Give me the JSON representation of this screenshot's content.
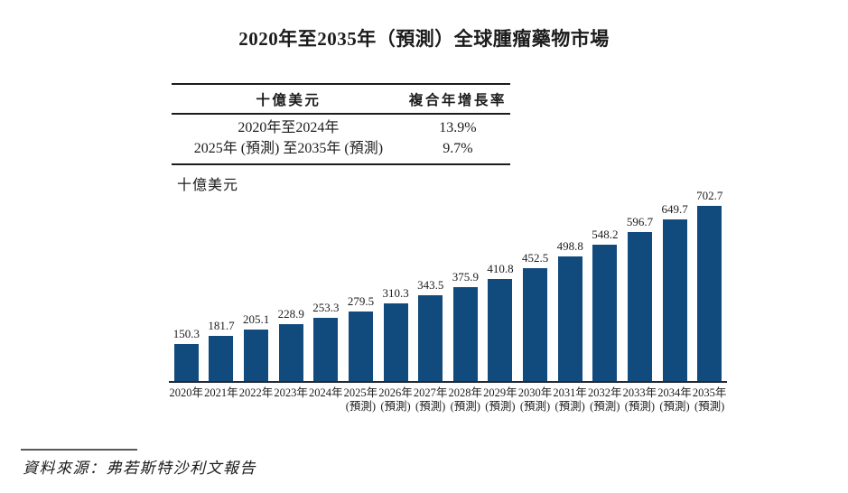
{
  "title": "2020年至2035年（預測）全球腫瘤藥物市場",
  "cagr_table": {
    "unit_header": "十億美元",
    "cagr_header": "複合年增長率",
    "rows": [
      {
        "period": "2020年至2024年",
        "cagr": "13.9%"
      },
      {
        "period": "2025年 (預測) 至2035年 (預測)",
        "cagr": "9.7%"
      }
    ]
  },
  "unit_label": "十億美元",
  "chart_data": {
    "type": "bar",
    "title": "2020年至2035年（預測）全球腫瘤藥物市場",
    "ylabel": "十億美元",
    "categories": [
      "2020年",
      "2021年",
      "2022年",
      "2023年",
      "2024年",
      "2025年",
      "2026年",
      "2027年",
      "2028年",
      "2029年",
      "2030年",
      "2031年",
      "2032年",
      "2033年",
      "2034年",
      "2035年"
    ],
    "category_sublabels": [
      "",
      "",
      "",
      "",
      "",
      "(預測)",
      "(預測)",
      "(預測)",
      "(預測)",
      "(預測)",
      "(預測)",
      "(預測)",
      "(預測)",
      "(預測)",
      "(預測)",
      "(預測)"
    ],
    "values": [
      150.3,
      181.7,
      205.1,
      228.9,
      253.3,
      279.5,
      310.3,
      343.5,
      375.9,
      410.8,
      452.5,
      498.8,
      548.2,
      596.7,
      649.7,
      702.7
    ],
    "ylim": [
      0,
      720
    ],
    "grid": false,
    "legend": false,
    "data_labels": true,
    "bar_color": "#114A7C",
    "axis_color": "#222a35",
    "text_color": "#1c1c1c"
  },
  "source": "資料來源：弗若斯特沙利文報告"
}
